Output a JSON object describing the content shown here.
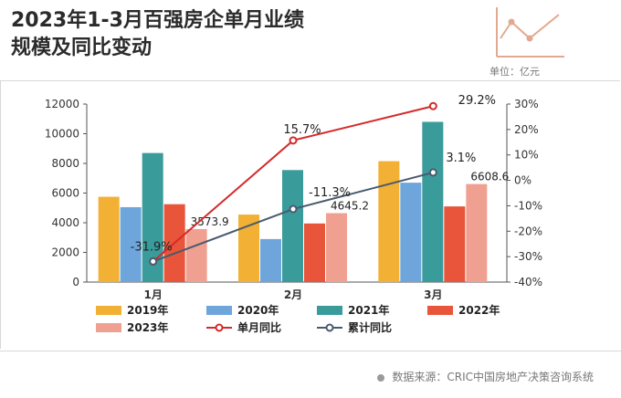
{
  "header": {
    "title_line1": "2023年1-3月百强房企单月业绩",
    "title_line2": "规模及同比变动",
    "unit": "单位：亿元"
  },
  "footer": {
    "source": "数据来源：CRIC中国房地产决策咨询系统"
  },
  "colors": {
    "2019年": "#f2b134",
    "2020年": "#6ea6dc",
    "2021年": "#3a9b9b",
    "2022年": "#e8553a",
    "2023年": "#f0a090",
    "单月同比": "#d42a2a",
    "累计同比": "#4a5a6e",
    "deco": "#e3a990"
  },
  "chart_data": {
    "type": "bar",
    "categories": [
      "1月",
      "2月",
      "3月"
    ],
    "series": [
      {
        "name": "2019年",
        "values": [
          5750,
          4550,
          8150
        ]
      },
      {
        "name": "2020年",
        "values": [
          5050,
          2900,
          6700
        ]
      },
      {
        "name": "2021年",
        "values": [
          8700,
          7550,
          10800
        ]
      },
      {
        "name": "2022年",
        "values": [
          5250,
          3950,
          5100
        ]
      },
      {
        "name": "2023年",
        "values": [
          3573.9,
          4645.2,
          6608.6
        ]
      }
    ],
    "line_series": [
      {
        "name": "单月同比",
        "values": [
          -31.9,
          15.7,
          29.2
        ]
      },
      {
        "name": "累计同比",
        "values": [
          -31.9,
          -11.3,
          3.1
        ]
      }
    ],
    "data_labels": {
      "bars_2023": [
        "3573.9",
        "4645.2",
        "6608.6"
      ],
      "单月同比": [
        "-31.9%",
        "15.7%",
        "29.2%"
      ],
      "累计同比": [
        "",
        "-11.3%",
        "3.1%"
      ]
    },
    "y_left": {
      "min": 0,
      "max": 12000,
      "ticks": [
        0,
        2000,
        4000,
        6000,
        8000,
        10000,
        12000
      ]
    },
    "y_right": {
      "min": -40,
      "max": 30,
      "ticks": [
        "30%",
        "20%",
        "10%",
        "0%",
        "-10%",
        "-20%",
        "-30%",
        "-40%"
      ],
      "tick_values": [
        30,
        20,
        10,
        0,
        -10,
        -20,
        -30,
        -40
      ]
    },
    "legend": [
      "2019年",
      "2020年",
      "2021年",
      "2022年",
      "2023年",
      "单月同比",
      "累计同比"
    ],
    "legend_position": "bottom",
    "grid": false
  }
}
